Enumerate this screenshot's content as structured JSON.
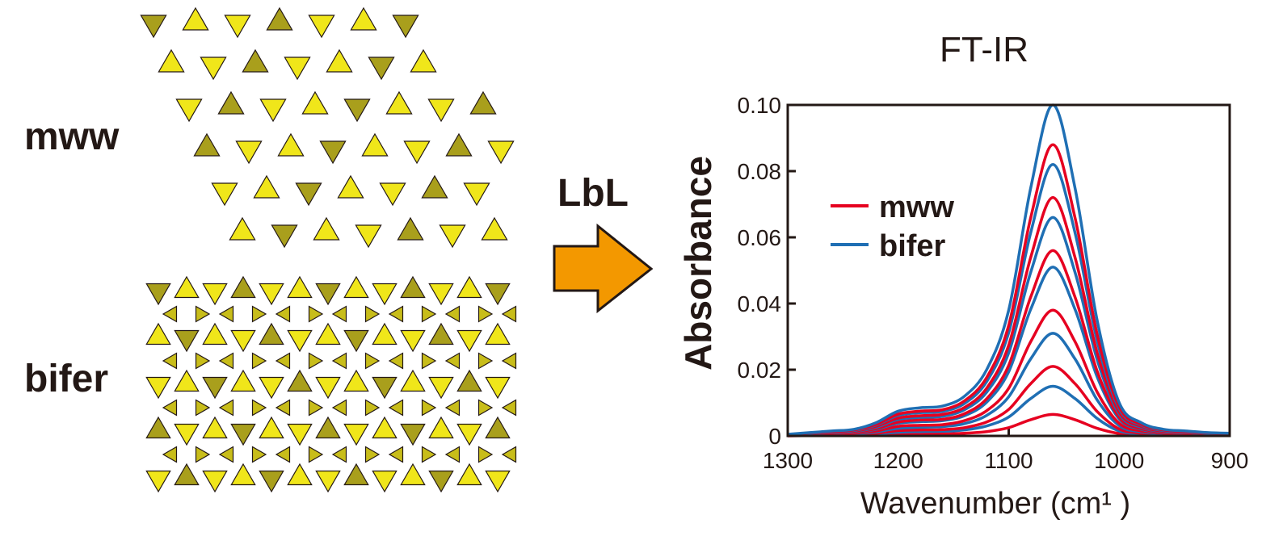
{
  "structures": [
    "mww",
    "bifer"
  ],
  "arrow_label": "LbL",
  "chart_data": {
    "type": "line",
    "title": "FT-IR",
    "x_label": "Wavenumber (cm¹ )",
    "y_label": "Absorbance",
    "xlim": [
      1300,
      900
    ],
    "xticks": [
      1300,
      1200,
      1100,
      1000,
      900
    ],
    "ylim": [
      0,
      0.1
    ],
    "yticks": [
      0,
      0.02,
      0.04,
      0.06,
      0.08,
      {
        "value": 0.1,
        "label": "0.10"
      }
    ],
    "x": [
      1300,
      1280,
      1260,
      1240,
      1220,
      1200,
      1180,
      1160,
      1140,
      1120,
      1100,
      1080,
      1060,
      1040,
      1020,
      1000,
      980,
      960,
      940,
      920,
      900
    ],
    "legend": "upper left",
    "series": [
      {
        "name": "mww",
        "color": "#e60020",
        "values": [
          [
            0,
            0.0001,
            0.0001,
            0.0001,
            0.0003,
            0.0005,
            0.0006,
            0.0006,
            0.0008,
            0.0013,
            0.0025,
            0.0049,
            0.0065,
            0.0049,
            0.0023,
            0.0007,
            0.0003,
            0.0001,
            0.0001,
            0.0001,
            0.0001
          ],
          [
            0.0001,
            0.0002,
            0.0003,
            0.0004,
            0.0008,
            0.0016,
            0.0018,
            0.0019,
            0.0025,
            0.0042,
            0.008,
            0.0158,
            0.021,
            0.0158,
            0.0074,
            0.0021,
            0.0008,
            0.0004,
            0.0003,
            0.0002,
            0.0002
          ],
          [
            0.0002,
            0.0004,
            0.0006,
            0.0008,
            0.0015,
            0.0029,
            0.0032,
            0.0034,
            0.0046,
            0.0076,
            0.0144,
            0.0285,
            0.038,
            0.0285,
            0.0133,
            0.0038,
            0.0015,
            0.0008,
            0.0006,
            0.0004,
            0.0003
          ],
          [
            0.0003,
            0.0006,
            0.0008,
            0.0011,
            0.0022,
            0.0042,
            0.0048,
            0.005,
            0.0067,
            0.0112,
            0.0213,
            0.042,
            0.056,
            0.042,
            0.0196,
            0.0056,
            0.0022,
            0.0011,
            0.0008,
            0.0006,
            0.0004
          ],
          [
            0.0004,
            0.0007,
            0.0011,
            0.0014,
            0.0029,
            0.0054,
            0.0061,
            0.0065,
            0.0086,
            0.0144,
            0.0274,
            0.054,
            0.072,
            0.054,
            0.0252,
            0.0072,
            0.0029,
            0.0014,
            0.0011,
            0.0007,
            0.0006
          ],
          [
            0.0004,
            0.0009,
            0.0013,
            0.0018,
            0.0035,
            0.0066,
            0.0075,
            0.0079,
            0.0106,
            0.0176,
            0.0334,
            0.066,
            0.088,
            0.066,
            0.0308,
            0.0088,
            0.0035,
            0.0018,
            0.0013,
            0.0009,
            0.0007
          ]
        ]
      },
      {
        "name": "bifer",
        "color": "#1f6fb4",
        "values": [
          [
            0.0001,
            0.0002,
            0.0002,
            0.0003,
            0.0006,
            0.0011,
            0.0013,
            0.0014,
            0.0018,
            0.003,
            0.0057,
            0.0113,
            0.015,
            0.0113,
            0.0053,
            0.0015,
            0.0006,
            0.0003,
            0.0002,
            0.0002,
            0.0001
          ],
          [
            0.0002,
            0.0003,
            0.0005,
            0.0006,
            0.0012,
            0.0023,
            0.0026,
            0.0028,
            0.0037,
            0.0062,
            0.0118,
            0.0233,
            0.031,
            0.0233,
            0.0109,
            0.0031,
            0.0012,
            0.0006,
            0.0005,
            0.0003,
            0.0002
          ],
          [
            0.0003,
            0.0005,
            0.0008,
            0.001,
            0.002,
            0.0038,
            0.0043,
            0.0046,
            0.0061,
            0.0102,
            0.0194,
            0.0383,
            0.051,
            0.0383,
            0.0179,
            0.0051,
            0.002,
            0.001,
            0.0008,
            0.0005,
            0.0004
          ],
          [
            0.0003,
            0.0007,
            0.001,
            0.0013,
            0.0026,
            0.005,
            0.0056,
            0.0059,
            0.0079,
            0.0132,
            0.0251,
            0.0495,
            0.066,
            0.0495,
            0.0231,
            0.0066,
            0.0026,
            0.0013,
            0.001,
            0.0007,
            0.0005
          ],
          [
            0.0004,
            0.0008,
            0.0012,
            0.0016,
            0.0033,
            0.0062,
            0.007,
            0.0074,
            0.0098,
            0.0164,
            0.0312,
            0.0615,
            0.082,
            0.0615,
            0.0287,
            0.0082,
            0.0033,
            0.0016,
            0.0012,
            0.0008,
            0.0007
          ],
          [
            0.0005,
            0.001,
            0.0015,
            0.002,
            0.004,
            0.0075,
            0.0085,
            0.009,
            0.012,
            0.02,
            0.038,
            0.075,
            0.1,
            0.075,
            0.035,
            0.01,
            0.004,
            0.002,
            0.0015,
            0.001,
            0.0008
          ]
        ]
      }
    ]
  }
}
